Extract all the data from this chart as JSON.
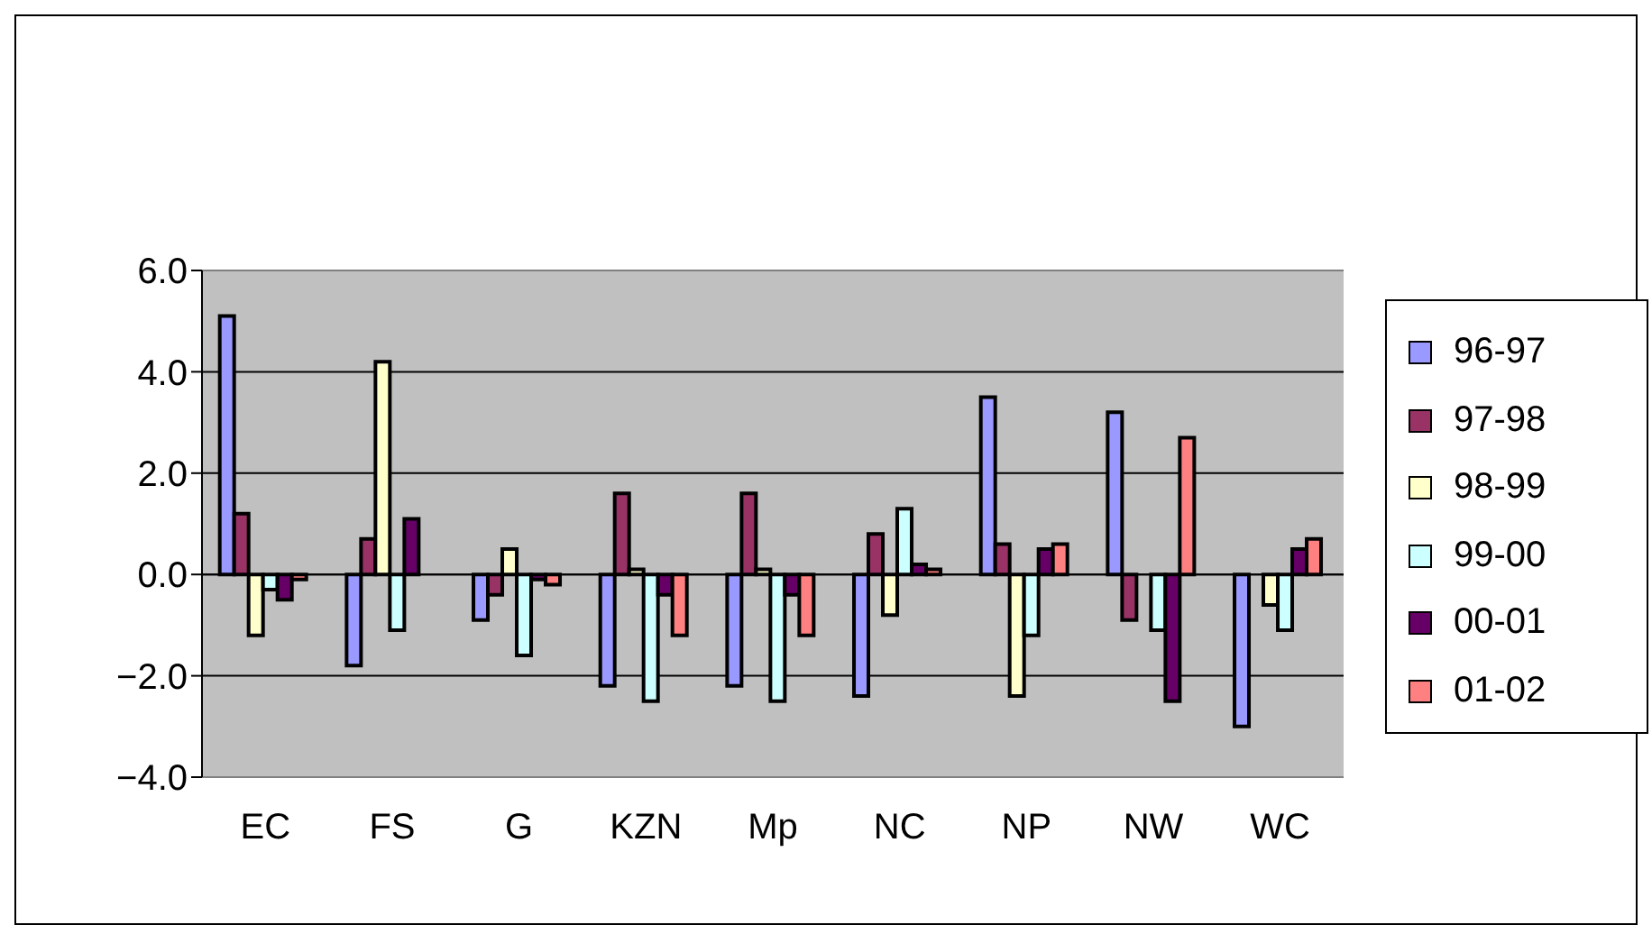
{
  "chart_data": {
    "type": "bar",
    "categories": [
      "EC",
      "FS",
      "G",
      "KZN",
      "Mp",
      "NC",
      "NP",
      "NW",
      "WC"
    ],
    "series": [
      {
        "name": "96-97",
        "color": "#9999ff",
        "values": [
          5.1,
          -1.8,
          -0.9,
          -2.2,
          -2.2,
          -2.4,
          3.5,
          3.2,
          -3.0
        ]
      },
      {
        "name": "97-98",
        "color": "#993366",
        "values": [
          1.2,
          0.7,
          -0.4,
          1.6,
          1.6,
          0.8,
          0.6,
          -0.9,
          0
        ]
      },
      {
        "name": "98-99",
        "color": "#ffffcc",
        "values": [
          -1.2,
          4.2,
          0.5,
          0.1,
          0.1,
          -0.8,
          -2.4,
          0,
          -0.6
        ]
      },
      {
        "name": "99-00",
        "color": "#ccffff",
        "values": [
          -0.3,
          -1.1,
          -1.6,
          -2.5,
          -2.5,
          1.3,
          -1.2,
          -1.1,
          -1.1
        ]
      },
      {
        "name": "00-01",
        "color": "#660066",
        "values": [
          -0.5,
          1.1,
          -0.1,
          -0.4,
          -0.4,
          0.2,
          0.5,
          -2.5,
          0.5
        ]
      },
      {
        "name": "01-02",
        "color": "#ff8080",
        "values": [
          -0.1,
          0,
          -0.2,
          -1.2,
          -1.2,
          0.1,
          0.6,
          2.7,
          0.7
        ]
      }
    ],
    "ylim": [
      -4,
      6
    ],
    "yticks": [
      {
        "value": -4,
        "label": "−4.0"
      },
      {
        "value": -2,
        "label": "−2.0"
      },
      {
        "value": 0,
        "label": "0.0"
      },
      {
        "value": 2,
        "label": "2.0"
      },
      {
        "value": 4,
        "label": "4.0"
      },
      {
        "value": 6,
        "label": "6.0"
      }
    ],
    "grid": "y",
    "legend": "right"
  }
}
